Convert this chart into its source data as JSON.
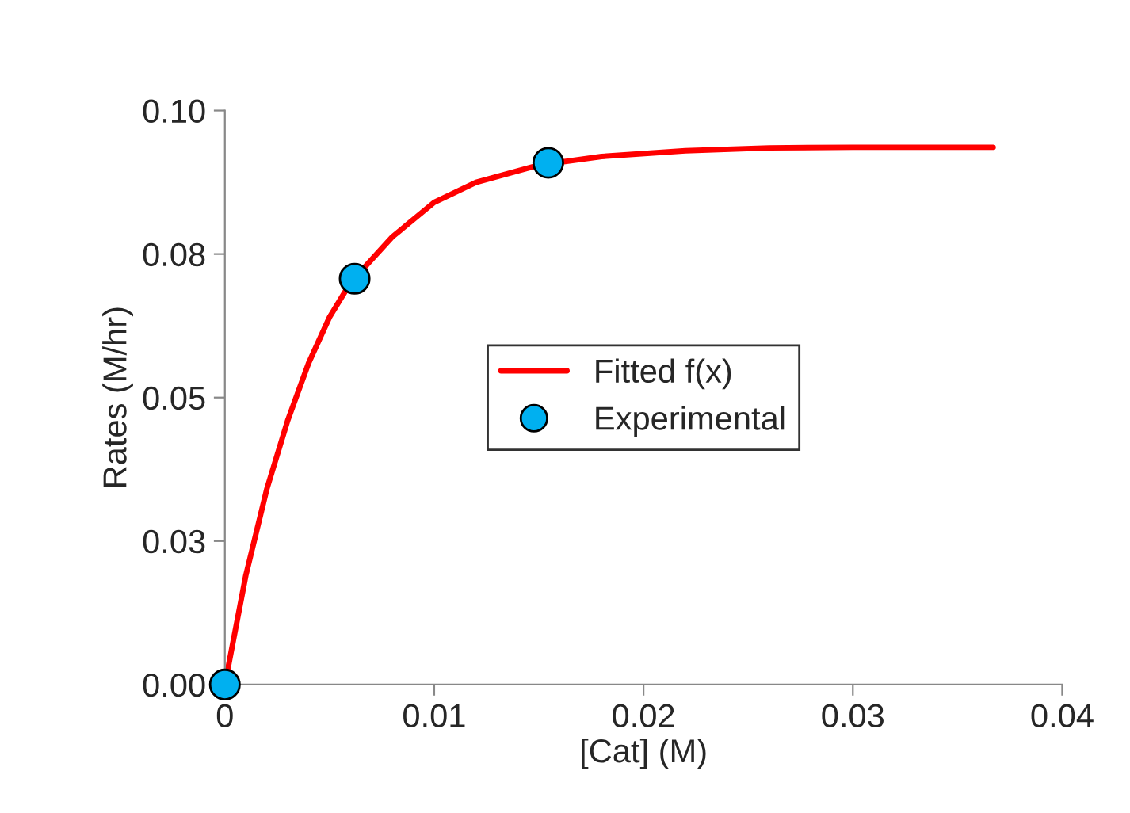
{
  "chart_data": {
    "type": "scatter",
    "xlabel": "[Cat] (M)",
    "ylabel": "Rates (M/hr)",
    "xlim": [
      0,
      0.04
    ],
    "xticks": [
      {
        "value": 0,
        "label": "0"
      },
      0.01,
      0.02,
      0.03,
      0.04
    ],
    "ylim": [
      0,
      0.1
    ],
    "yticks": [
      {
        "value": 0,
        "label": "0.00"
      },
      {
        "value": 0.025,
        "label": "0.03"
      },
      {
        "value": 0.05,
        "label": "0.05"
      },
      {
        "value": 0.075,
        "label": "0.08"
      },
      {
        "value": 0.1,
        "label": "0.10"
      }
    ],
    "grid": false,
    "legend": "center",
    "series": [
      {
        "name": "Fitted f(x)",
        "type": "line",
        "color": "#ff0000",
        "marker": "none",
        "line_style": "solid",
        "x": [
          0,
          0.001,
          0.002,
          0.003,
          0.004,
          0.005,
          0.006,
          0.008,
          0.01,
          0.012,
          0.015,
          0.018,
          0.022,
          0.026,
          0.03,
          0.0367
        ],
        "values": [
          0,
          0.019,
          0.034,
          0.046,
          0.056,
          0.064,
          0.07,
          0.078,
          0.084,
          0.0875,
          0.0905,
          0.092,
          0.093,
          0.0935,
          0.0936,
          0.0936
        ]
      },
      {
        "name": "Experimental",
        "color": "#00b0f0",
        "marker": "circle",
        "x": [
          0,
          0.0062,
          0.01545
        ],
        "values": [
          0,
          0.0707,
          0.0909
        ]
      }
    ]
  }
}
